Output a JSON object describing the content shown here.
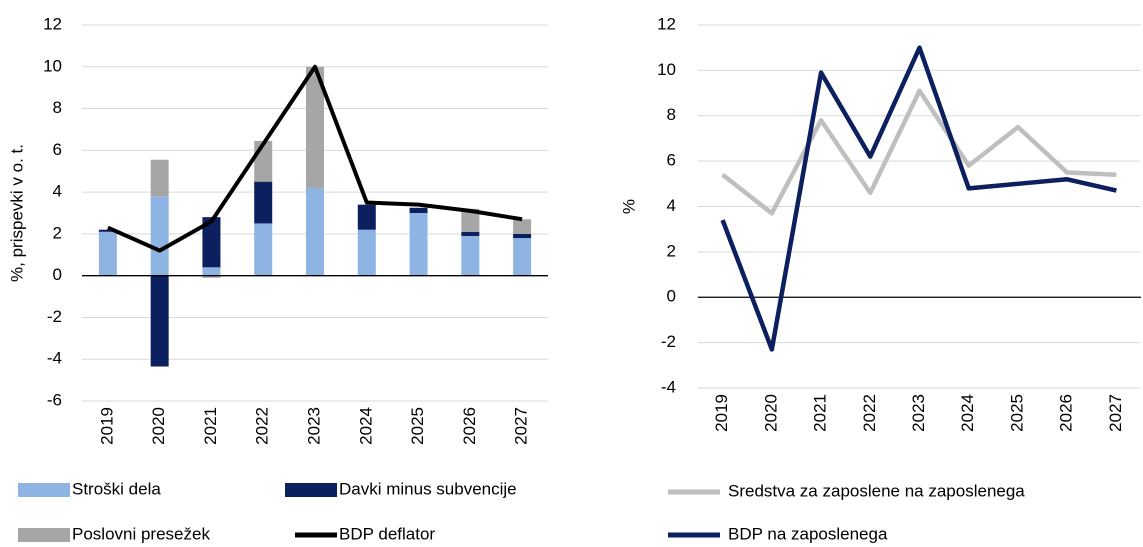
{
  "chart_data": [
    {
      "type": "bar",
      "stacked": true,
      "ylabel": "%, prispevki v o. t.",
      "categories": [
        "2019",
        "2020",
        "2021",
        "2022",
        "2023",
        "2024",
        "2025",
        "2026",
        "2027"
      ],
      "series": [
        {
          "name": "Stroški dela",
          "color": "#8db4e2",
          "values": [
            2.1,
            3.8,
            0.4,
            2.5,
            4.2,
            2.2,
            3.0,
            1.9,
            1.8
          ]
        },
        {
          "name": "Davki minus subvencije",
          "color": "#0c1f5e",
          "values": [
            0.1,
            -4.35,
            2.4,
            2.0,
            0.0,
            1.2,
            0.25,
            0.2,
            0.2
          ]
        },
        {
          "name": "Poslovni presežek",
          "color": "#a6a6a6",
          "values": [
            0.0,
            1.75,
            -0.1,
            1.95,
            5.8,
            0.0,
            0.0,
            1.1,
            0.7
          ]
        },
        {
          "name": "BDP deflator",
          "color": "#000000",
          "type": "line",
          "values": [
            2.3,
            1.2,
            2.6,
            6.3,
            10.0,
            3.5,
            3.4,
            3.1,
            2.7
          ]
        }
      ],
      "ylim": [
        -6,
        12
      ],
      "yticks": [
        -6,
        -4,
        -2,
        0,
        2,
        4,
        6,
        8,
        10,
        12
      ],
      "grid": true
    },
    {
      "type": "line",
      "ylabel": "%",
      "categories": [
        "2019",
        "2020",
        "2021",
        "2022",
        "2023",
        "2024",
        "2025",
        "2026",
        "2027"
      ],
      "series": [
        {
          "name": "Sredstva za zaposlene na zaposlenega",
          "color": "#bfbfbf",
          "values": [
            5.4,
            3.7,
            7.8,
            4.6,
            9.1,
            5.8,
            7.5,
            5.5,
            5.4
          ]
        },
        {
          "name": "BDP na zaposlenega",
          "color": "#0c1f5e",
          "values": [
            3.4,
            -2.3,
            9.9,
            6.2,
            11.0,
            4.8,
            5.0,
            5.2,
            4.7
          ]
        }
      ],
      "ylim": [
        -4,
        12
      ],
      "yticks": [
        -4,
        -2,
        0,
        2,
        4,
        6,
        8,
        10,
        12
      ],
      "grid": true
    }
  ]
}
